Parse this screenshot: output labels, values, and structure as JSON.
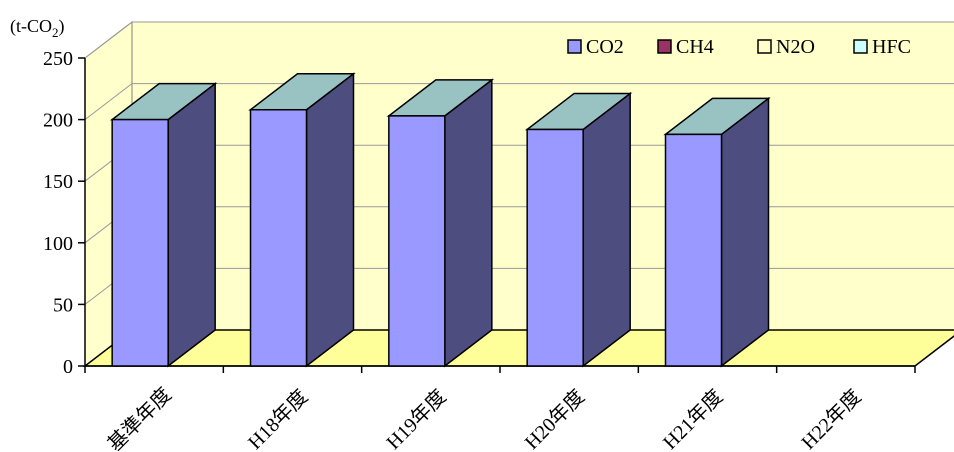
{
  "chart_data": {
    "type": "bar",
    "categories": [
      "基準年度",
      "H18年度",
      "H19年度",
      "H20年度",
      "H21年度",
      "H22年度"
    ],
    "series": [
      {
        "name": "CO2",
        "values": [
          200,
          208,
          203,
          192,
          188,
          null
        ],
        "color": "#9999ff"
      },
      {
        "name": "CH4",
        "values": [
          null,
          null,
          null,
          null,
          null,
          null
        ],
        "color": "#993366"
      },
      {
        "name": "N2O",
        "values": [
          null,
          null,
          null,
          null,
          null,
          null
        ],
        "color": "#ffffcc"
      },
      {
        "name": "HFC",
        "values": [
          null,
          null,
          null,
          null,
          null,
          null
        ],
        "color": "#ccffff"
      }
    ],
    "yticks": [
      0,
      50,
      100,
      150,
      200,
      250
    ],
    "ylim": [
      0,
      250
    ],
    "unit_label": {
      "prefix": "(t-CO",
      "sub": "2",
      "suffix": ")"
    },
    "legend_position": "top-right",
    "grid": true,
    "colors": {
      "wall": "#ffffcc",
      "floor": "#ffff99",
      "bar_front": "#9999ff",
      "bar_side": "#4d4d80",
      "bar_top": "#99c3c3",
      "grid": "#999999"
    }
  }
}
